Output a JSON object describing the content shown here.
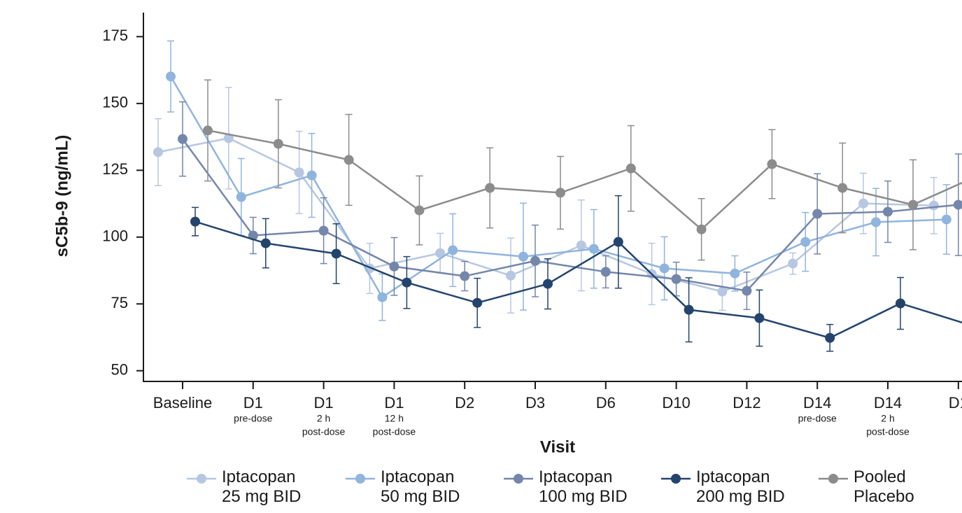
{
  "chart_data": {
    "type": "line",
    "x_label": "Visit",
    "y_label": "sC5b-9 (ng/mL)",
    "categories": [
      "Baseline",
      "D1",
      "D1",
      "D1",
      "D2",
      "D3",
      "D6",
      "D10",
      "D12",
      "D14",
      "D14",
      "D1"
    ],
    "category_sublabels": [
      [],
      [
        "pre-dose"
      ],
      [
        "2 h",
        "post-dose"
      ],
      [
        "12 h",
        "post-dose"
      ],
      [],
      [],
      [],
      [],
      [],
      [
        "pre-dose"
      ],
      [
        "2 h",
        "post-dose"
      ],
      []
    ],
    "ylim": [
      46,
      184
    ],
    "yticks": [
      50,
      75,
      100,
      125,
      150,
      175
    ],
    "series": [
      {
        "name": "Iptacopan\n25 mg BID",
        "color": "#b7c7e2",
        "values": [
          131.8,
          137,
          124.2,
          88.3,
          94,
          85.6,
          96.9,
          86.2,
          79.6,
          90.1,
          112.6,
          111.8
        ],
        "errors": [
          12.5,
          19,
          15.4,
          9.4,
          7.4,
          14,
          17,
          11.5,
          7,
          4,
          11.3,
          10.5
        ]
      },
      {
        "name": "Iptacopan\n50 mg BID",
        "color": "#8fb4de",
        "values": [
          160.1,
          115,
          123.1,
          77.5,
          95.1,
          92.7,
          95.6,
          88.3,
          86.4,
          98.2,
          105.6,
          106.6
        ],
        "errors": [
          13.3,
          14.4,
          15.7,
          8.7,
          13.6,
          20,
          14.7,
          11.8,
          6.6,
          11,
          12.6,
          13
        ]
      },
      {
        "name": "Iptacopan\n100 mg BID",
        "color": "#7486ab",
        "values": [
          136.7,
          100.6,
          102.4,
          89,
          85.4,
          91.1,
          87,
          84.3,
          79.9,
          108.7,
          109.5,
          112.1
        ],
        "errors": [
          13.9,
          6.8,
          12.3,
          10.8,
          5.5,
          13.4,
          6,
          6.3,
          7,
          15,
          11.5,
          19
        ]
      },
      {
        "name": "Iptacopan\n200 mg BID",
        "color": "#23446d",
        "values": [
          105.8,
          97.7,
          93.8,
          83,
          75.4,
          82.5,
          98.2,
          72.8,
          69.7,
          62.3,
          75.2,
          67
        ],
        "errors": [
          5.3,
          9.2,
          11.2,
          9.7,
          9.2,
          9.4,
          17.3,
          12,
          10.5,
          5,
          9.7,
          9
        ]
      },
      {
        "name": "Pooled\nPlacebo",
        "color": "#8c8c8c",
        "values": [
          139.9,
          134.9,
          128.9,
          110,
          118.4,
          116.6,
          125.7,
          102.9,
          127.3,
          118.4,
          112.1,
          123.9
        ],
        "errors": [
          18.9,
          16.5,
          17,
          12.9,
          15,
          13.6,
          16,
          11.5,
          12.9,
          16.8,
          16.8,
          15
        ]
      }
    ]
  }
}
